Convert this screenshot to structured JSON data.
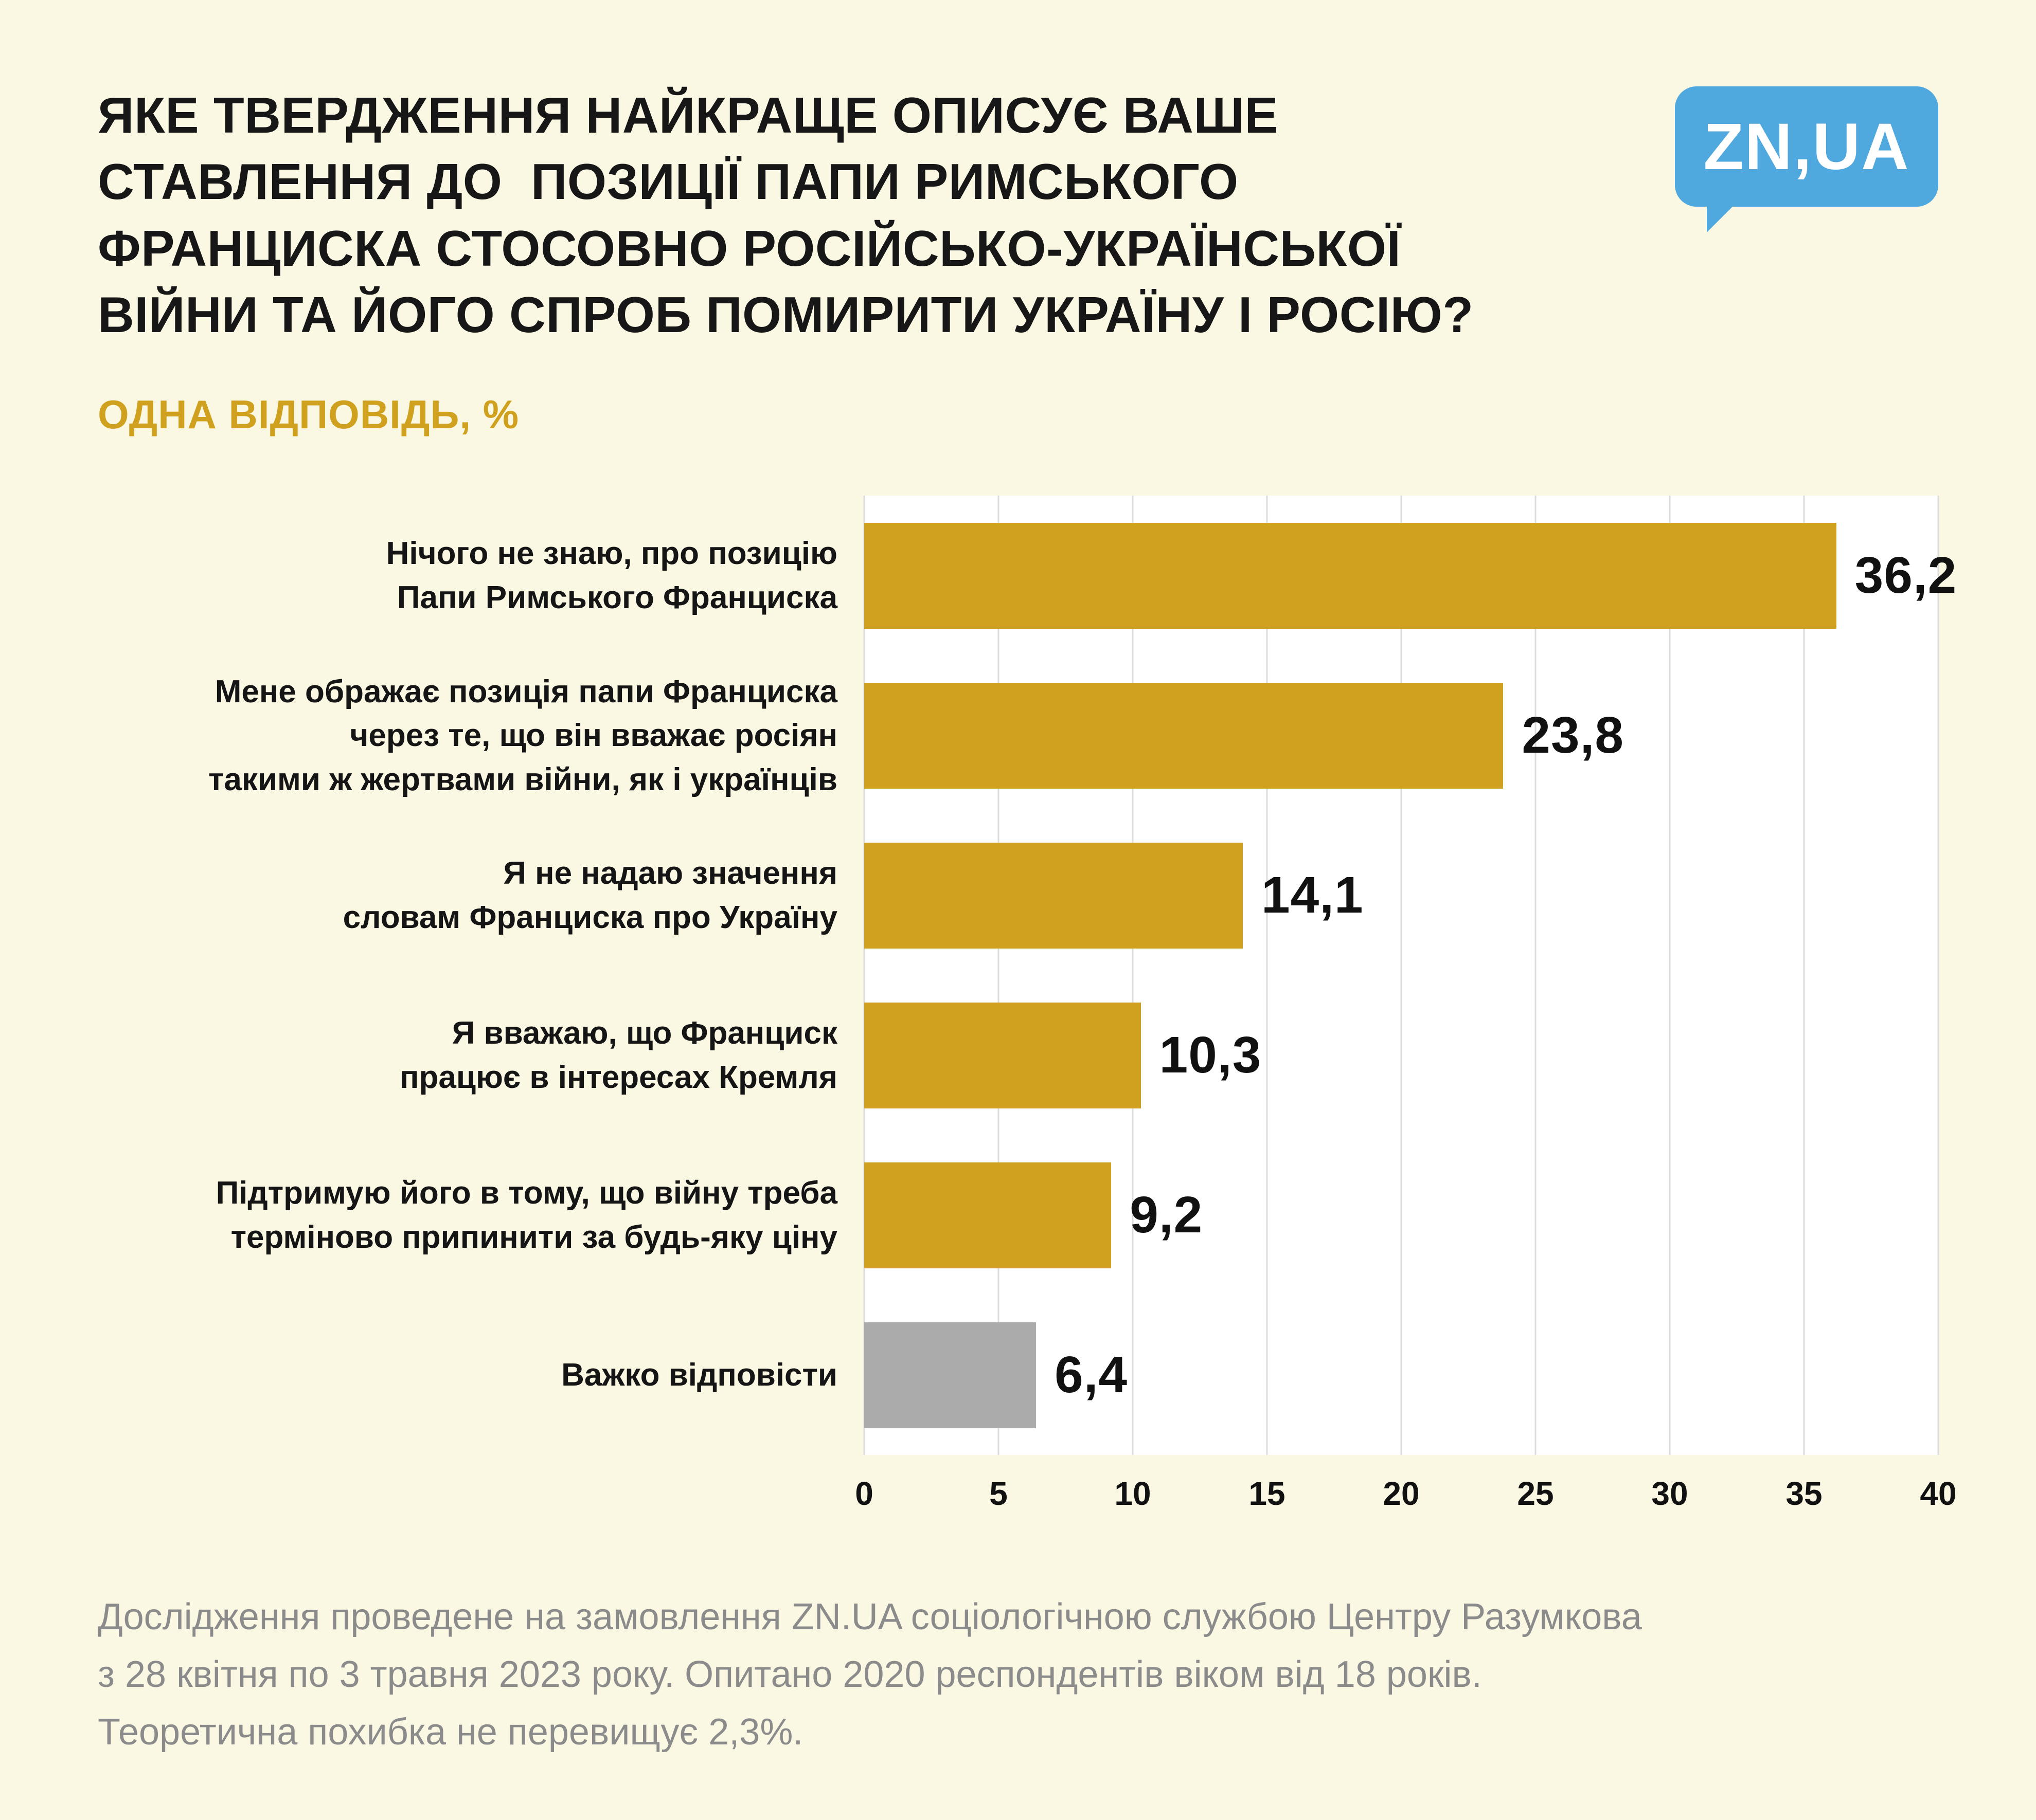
{
  "title": "ЯКЕ ТВЕРДЖЕННЯ НАЙКРАЩЕ ОПИСУЄ ВАШЕ\nСТАВЛЕННЯ ДО  ПОЗИЦІЇ ПАПИ РИМСЬКОГО\nФРАНЦИСКА СТОСОВНО РОСІЙСЬКО-УКРАЇНСЬКОЇ\nВІЙНИ ТА ЙОГО СПРОБ ПОМИРИТИ УКРАЇНУ І РОСІЮ?",
  "subtitle": "ОДНА ВІДПОВІДЬ, %",
  "logo": {
    "text": "ZN,UA",
    "color": "#4FA8DE"
  },
  "chart_data": {
    "type": "bar",
    "orientation": "horizontal",
    "title": "Яке твердження найкраще описує ваше ставлення до позиції Папи Римського Франциска стосовно російсько-української війни та його спроб помирити Україну і Росію?",
    "subtitle": "Одна відповідь, %",
    "categories": [
      "Нічого не знаю, про позицію\nПапи Римського Франциска",
      "Мене ображає позиція папи Франциска\nчерез те, що він вважає росіян\nтакими ж жертвами війни, як і українців",
      "Я не надаю значення\nсловам Франциска про Україну",
      "Я вважаю, що Франциск\nпрацює в інтересах Кремля",
      "Підтримую його в тому, що війну треба\nтерміново припинити за будь-яку ціну",
      "Важко відповісти"
    ],
    "values": [
      36.2,
      23.8,
      14.1,
      10.3,
      9.2,
      6.4
    ],
    "value_labels": [
      "36,2",
      "23,8",
      "14,1",
      "10,3",
      "9,2",
      "6,4"
    ],
    "bar_colors": [
      "#D0A11E",
      "#D0A11E",
      "#D0A11E",
      "#D0A11E",
      "#D0A11E",
      "#ABABAB"
    ],
    "xlim": [
      0,
      40
    ],
    "ticks": [
      0,
      5,
      10,
      15,
      20,
      25,
      30,
      35,
      40
    ],
    "xlabel": "%",
    "grid": true,
    "legend": false
  },
  "footer": "Дослідження проведене на замовлення ZN.UA соціологічною службою Центру Разумкова\nз 28 квітня по 3 травня 2023 року. Опитано 2020 респондентів віком від 18 років.\nТеоретична похибка не перевищує 2,3%.",
  "colors": {
    "background": "#FAF7E3",
    "accent_gold": "#D0A11E",
    "gray_bar": "#ABABAB",
    "logo_blue": "#4FA8DE",
    "footer_text": "#8B8B8B"
  }
}
